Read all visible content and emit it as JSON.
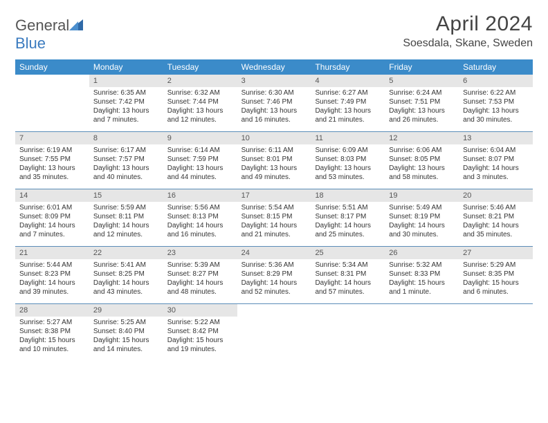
{
  "brand": {
    "name_part1": "General",
    "name_part2": "Blue"
  },
  "title": "April 2024",
  "location": "Soesdala, Skane, Sweden",
  "colors": {
    "header_bg": "#3b8bc9",
    "header_text": "#ffffff",
    "daynum_bg": "#e6e6e6",
    "row_border": "#5a8cb8",
    "brand_blue": "#3b7bbf"
  },
  "weekdays": [
    "Sunday",
    "Monday",
    "Tuesday",
    "Wednesday",
    "Thursday",
    "Friday",
    "Saturday"
  ],
  "weeks": [
    [
      {
        "empty": true
      },
      {
        "n": "1",
        "sunrise": "6:35 AM",
        "sunset": "7:42 PM",
        "daylight": "13 hours and 7 minutes."
      },
      {
        "n": "2",
        "sunrise": "6:32 AM",
        "sunset": "7:44 PM",
        "daylight": "13 hours and 12 minutes."
      },
      {
        "n": "3",
        "sunrise": "6:30 AM",
        "sunset": "7:46 PM",
        "daylight": "13 hours and 16 minutes."
      },
      {
        "n": "4",
        "sunrise": "6:27 AM",
        "sunset": "7:49 PM",
        "daylight": "13 hours and 21 minutes."
      },
      {
        "n": "5",
        "sunrise": "6:24 AM",
        "sunset": "7:51 PM",
        "daylight": "13 hours and 26 minutes."
      },
      {
        "n": "6",
        "sunrise": "6:22 AM",
        "sunset": "7:53 PM",
        "daylight": "13 hours and 30 minutes."
      }
    ],
    [
      {
        "n": "7",
        "sunrise": "6:19 AM",
        "sunset": "7:55 PM",
        "daylight": "13 hours and 35 minutes."
      },
      {
        "n": "8",
        "sunrise": "6:17 AM",
        "sunset": "7:57 PM",
        "daylight": "13 hours and 40 minutes."
      },
      {
        "n": "9",
        "sunrise": "6:14 AM",
        "sunset": "7:59 PM",
        "daylight": "13 hours and 44 minutes."
      },
      {
        "n": "10",
        "sunrise": "6:11 AM",
        "sunset": "8:01 PM",
        "daylight": "13 hours and 49 minutes."
      },
      {
        "n": "11",
        "sunrise": "6:09 AM",
        "sunset": "8:03 PM",
        "daylight": "13 hours and 53 minutes."
      },
      {
        "n": "12",
        "sunrise": "6:06 AM",
        "sunset": "8:05 PM",
        "daylight": "13 hours and 58 minutes."
      },
      {
        "n": "13",
        "sunrise": "6:04 AM",
        "sunset": "8:07 PM",
        "daylight": "14 hours and 3 minutes."
      }
    ],
    [
      {
        "n": "14",
        "sunrise": "6:01 AM",
        "sunset": "8:09 PM",
        "daylight": "14 hours and 7 minutes."
      },
      {
        "n": "15",
        "sunrise": "5:59 AM",
        "sunset": "8:11 PM",
        "daylight": "14 hours and 12 minutes."
      },
      {
        "n": "16",
        "sunrise": "5:56 AM",
        "sunset": "8:13 PM",
        "daylight": "14 hours and 16 minutes."
      },
      {
        "n": "17",
        "sunrise": "5:54 AM",
        "sunset": "8:15 PM",
        "daylight": "14 hours and 21 minutes."
      },
      {
        "n": "18",
        "sunrise": "5:51 AM",
        "sunset": "8:17 PM",
        "daylight": "14 hours and 25 minutes."
      },
      {
        "n": "19",
        "sunrise": "5:49 AM",
        "sunset": "8:19 PM",
        "daylight": "14 hours and 30 minutes."
      },
      {
        "n": "20",
        "sunrise": "5:46 AM",
        "sunset": "8:21 PM",
        "daylight": "14 hours and 35 minutes."
      }
    ],
    [
      {
        "n": "21",
        "sunrise": "5:44 AM",
        "sunset": "8:23 PM",
        "daylight": "14 hours and 39 minutes."
      },
      {
        "n": "22",
        "sunrise": "5:41 AM",
        "sunset": "8:25 PM",
        "daylight": "14 hours and 43 minutes."
      },
      {
        "n": "23",
        "sunrise": "5:39 AM",
        "sunset": "8:27 PM",
        "daylight": "14 hours and 48 minutes."
      },
      {
        "n": "24",
        "sunrise": "5:36 AM",
        "sunset": "8:29 PM",
        "daylight": "14 hours and 52 minutes."
      },
      {
        "n": "25",
        "sunrise": "5:34 AM",
        "sunset": "8:31 PM",
        "daylight": "14 hours and 57 minutes."
      },
      {
        "n": "26",
        "sunrise": "5:32 AM",
        "sunset": "8:33 PM",
        "daylight": "15 hours and 1 minute."
      },
      {
        "n": "27",
        "sunrise": "5:29 AM",
        "sunset": "8:35 PM",
        "daylight": "15 hours and 6 minutes."
      }
    ],
    [
      {
        "n": "28",
        "sunrise": "5:27 AM",
        "sunset": "8:38 PM",
        "daylight": "15 hours and 10 minutes."
      },
      {
        "n": "29",
        "sunrise": "5:25 AM",
        "sunset": "8:40 PM",
        "daylight": "15 hours and 14 minutes."
      },
      {
        "n": "30",
        "sunrise": "5:22 AM",
        "sunset": "8:42 PM",
        "daylight": "15 hours and 19 minutes."
      },
      {
        "empty": true
      },
      {
        "empty": true
      },
      {
        "empty": true
      },
      {
        "empty": true
      }
    ]
  ]
}
